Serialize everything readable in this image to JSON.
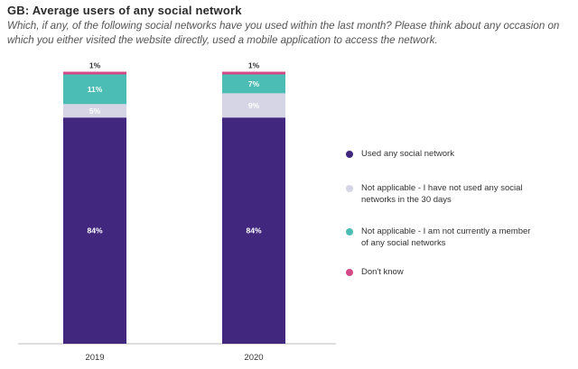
{
  "title": "GB: Average users of any social network",
  "subtitle": "Which, if any, of the following social networks have you used within the last month? Please think about any occasion on which you either visited the website directly, used a mobile application to access the network.",
  "colors": {
    "used": "#41287e",
    "not_used_30_days": "#d5d5e5",
    "not_member": "#4bbdb4",
    "dont_know": "#d24a87"
  },
  "chart_data": {
    "type": "bar",
    "stacked": true,
    "title": "GB: Average users of any social network",
    "categories": [
      "2019",
      "2020"
    ],
    "ylim": [
      0,
      100
    ],
    "grid": false,
    "legend_position": "right",
    "series": [
      {
        "name": "Used any social network",
        "color": "#41287e",
        "values": [
          84,
          84
        ],
        "labels": [
          "84%",
          "84%"
        ]
      },
      {
        "name": "Not applicable - I have not used any social networks in the 30 days",
        "color": "#d5d5e5",
        "values": [
          5,
          9
        ],
        "labels": [
          "5%",
          "9%"
        ]
      },
      {
        "name": "Not applicable - I am not currently a member of any social networks",
        "color": "#4bbdb4",
        "values": [
          11,
          7
        ],
        "labels": [
          "11%",
          "7%"
        ]
      },
      {
        "name": "Don't know",
        "color": "#d24a87",
        "values": [
          1,
          1
        ],
        "labels": [
          "1%",
          "1%"
        ]
      }
    ]
  }
}
